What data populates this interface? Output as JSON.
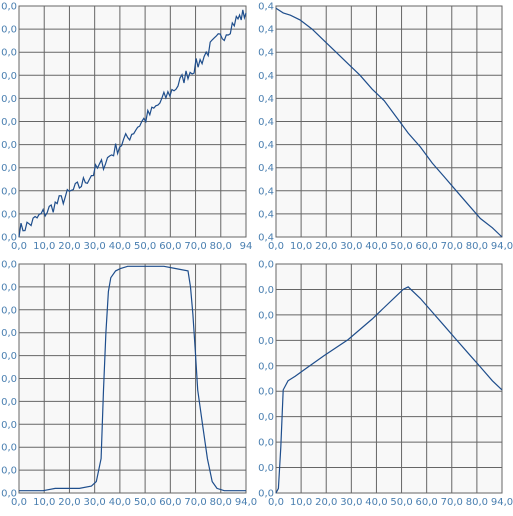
{
  "colors": {
    "background": "#ffffff",
    "plot_area": "#f8f8f8",
    "grid": "#666666",
    "line": "#1f4e8c",
    "tick_text": "#4a7fb0"
  },
  "chart_data": [
    {
      "id": "top-left",
      "type": "line",
      "grid": true,
      "xlim": [
        0,
        94
      ],
      "xticks": [
        "0,0",
        "10,0",
        "20,0",
        "30,0",
        "40,0",
        "50,0",
        "60,0",
        "70,0",
        "80,0",
        "94"
      ],
      "yticks": [
        "0,0",
        "0,0",
        "0,0",
        "0,0",
        "0,0",
        "0,0",
        "0,0",
        "0,0",
        "0,0",
        "0,0",
        "0,0"
      ],
      "ylim": [
        0,
        1
      ],
      "noisy": true,
      "x": [
        0,
        5,
        10,
        15,
        20,
        25,
        30,
        35,
        40,
        45,
        50,
        55,
        60,
        65,
        70,
        75,
        80,
        85,
        90,
        94
      ],
      "y": [
        0.03,
        0.06,
        0.1,
        0.14,
        0.18,
        0.22,
        0.27,
        0.32,
        0.38,
        0.43,
        0.49,
        0.54,
        0.6,
        0.65,
        0.71,
        0.76,
        0.83,
        0.88,
        0.94,
        0.97
      ]
    },
    {
      "id": "top-right",
      "type": "line",
      "grid": true,
      "xlim": [
        0,
        94
      ],
      "xticks": [
        "0,0",
        "10,0",
        "20,0",
        "30,0",
        "40,0",
        "50,0",
        "60,0",
        "70,0",
        "80,0",
        "94,0"
      ],
      "yticks": [
        "0,4",
        "0,4",
        "0,4",
        "0,4",
        "0,4",
        "0,4",
        "0,4",
        "0,4",
        "0,4",
        "0,4",
        "0,4"
      ],
      "ylim": [
        0,
        1
      ],
      "noisy": false,
      "x": [
        0,
        3,
        6,
        10,
        15,
        20,
        25,
        30,
        35,
        40,
        45,
        50,
        55,
        60,
        65,
        70,
        75,
        80,
        85,
        90,
        94
      ],
      "y": [
        0.99,
        0.97,
        0.96,
        0.94,
        0.9,
        0.85,
        0.8,
        0.75,
        0.7,
        0.64,
        0.59,
        0.52,
        0.45,
        0.39,
        0.32,
        0.26,
        0.2,
        0.14,
        0.08,
        0.04,
        0.0
      ]
    },
    {
      "id": "bottom-left",
      "type": "line",
      "grid": true,
      "xlim": [
        0,
        94
      ],
      "xticks": [
        "0,0",
        "10,0",
        "20,0",
        "30,0",
        "40,0",
        "50,0",
        "60,0",
        "70,0",
        "80,0",
        "94,0"
      ],
      "yticks": [
        "0,0",
        "0,0",
        "0,0",
        "0,0",
        "0,0",
        "0,0",
        "0,0",
        "0,0",
        "0,0",
        "0,0",
        "0,0"
      ],
      "ylim": [
        0,
        1
      ],
      "noisy": false,
      "x": [
        0,
        5,
        10,
        15,
        20,
        25,
        30,
        32,
        34,
        35,
        36,
        37,
        38,
        40,
        42,
        45,
        50,
        55,
        60,
        65,
        70,
        71,
        72,
        73,
        74,
        76,
        78,
        80,
        82,
        85,
        90,
        94
      ],
      "y": [
        0.01,
        0.01,
        0.01,
        0.02,
        0.02,
        0.02,
        0.03,
        0.05,
        0.15,
        0.45,
        0.7,
        0.88,
        0.94,
        0.97,
        0.98,
        0.99,
        0.99,
        0.99,
        0.99,
        0.98,
        0.97,
        0.9,
        0.78,
        0.62,
        0.45,
        0.3,
        0.15,
        0.05,
        0.02,
        0.01,
        0.01,
        0.01
      ]
    },
    {
      "id": "bottom-right",
      "type": "line",
      "grid": true,
      "xlim": [
        0,
        94
      ],
      "xticks": [
        "0,0",
        "10,0",
        "20,0",
        "30,0",
        "40,0",
        "50,0",
        "60,0",
        "70,0",
        "80,0",
        "94,0"
      ],
      "yticks": [
        "0,0",
        "0,0",
        "0,0",
        "0,0",
        "0,0",
        "0,0",
        "0,0",
        "0,0",
        "0,0",
        "0,0"
      ],
      "ylim": [
        0,
        1
      ],
      "noisy": false,
      "x": [
        0,
        1,
        2,
        3,
        4,
        5,
        8,
        12,
        20,
        30,
        40,
        45,
        50,
        53,
        55,
        60,
        65,
        70,
        75,
        80,
        85,
        90,
        94
      ],
      "y": [
        0.0,
        0.02,
        0.2,
        0.45,
        0.47,
        0.49,
        0.51,
        0.54,
        0.6,
        0.67,
        0.76,
        0.81,
        0.86,
        0.89,
        0.9,
        0.85,
        0.79,
        0.73,
        0.67,
        0.61,
        0.55,
        0.49,
        0.45
      ]
    }
  ]
}
